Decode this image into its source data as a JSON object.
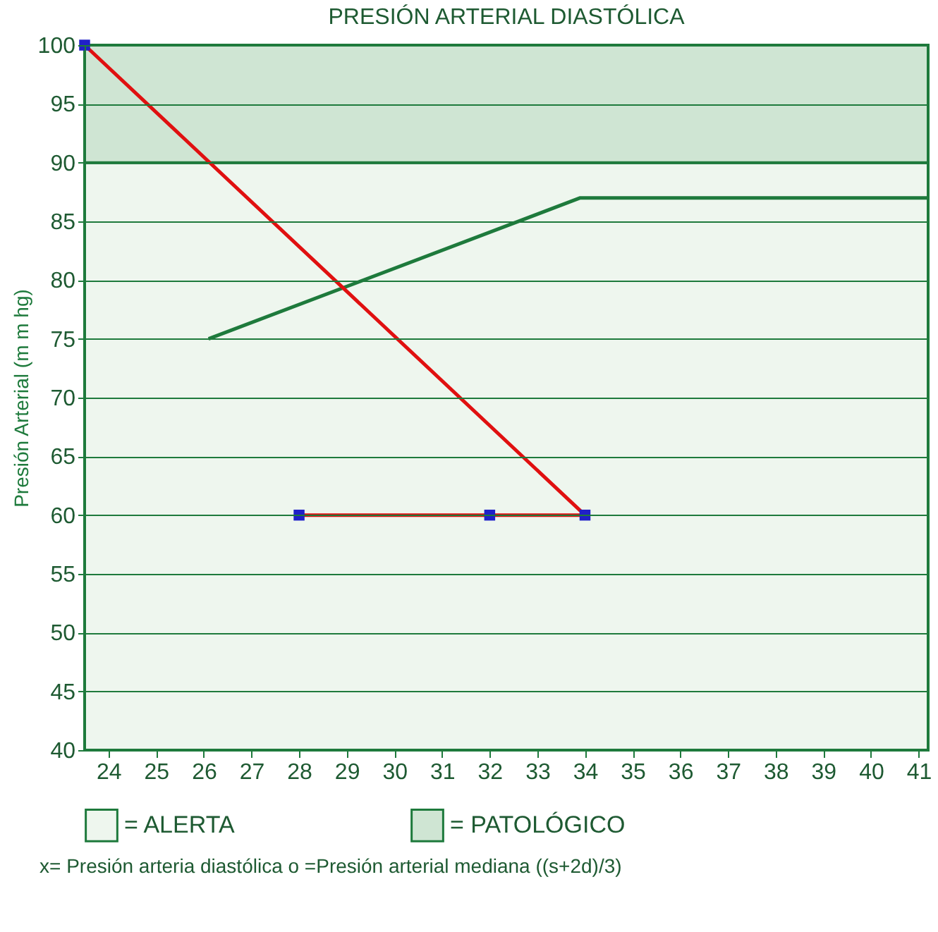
{
  "chart_data": {
    "type": "line",
    "title": "PRESIÓN ARTERIAL DIASTÓLICA",
    "ylabel": "Presión Arterial (m m hg)",
    "xlim": [
      23.5,
      41.2
    ],
    "xticks": [
      24,
      25,
      26,
      27,
      28,
      29,
      30,
      31,
      32,
      33,
      34,
      35,
      36,
      37,
      38,
      39,
      40,
      41
    ],
    "ylim": [
      40,
      100
    ],
    "yticks": [
      40,
      45,
      50,
      55,
      60,
      65,
      70,
      75,
      80,
      85,
      90,
      95,
      100
    ],
    "grid": "y",
    "legend": "bottom",
    "series": [
      {
        "color": "#1e7a3c",
        "x": [
          26.1,
          33.9,
          41.2
        ],
        "values": [
          75,
          87,
          87
        ],
        "marker": "none"
      },
      {
        "color": "#e01010",
        "x": [
          23.5,
          34,
          32,
          28
        ],
        "values": [
          100,
          60,
          60,
          60
        ],
        "marker": "square"
      }
    ],
    "bands": [
      {
        "axis": "y",
        "from": 40,
        "to": 90,
        "label": "= ALERTA",
        "color": "#eef6ee"
      },
      {
        "axis": "y",
        "from": 90,
        "to": 100,
        "label": "= PATOLÓGICO",
        "color": "#cfe5d3"
      }
    ],
    "annotations": [
      "x= Presión arteria diastólica  o =Presión arterial mediana ((s+2d)/3)"
    ]
  }
}
